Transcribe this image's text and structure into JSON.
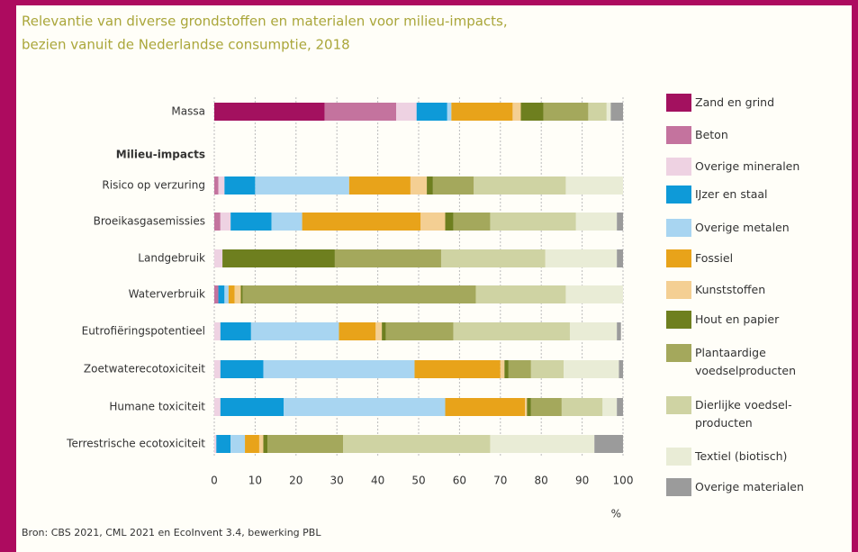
{
  "chart_data": {
    "type": "stacked_bar_horizontal",
    "title": "Relevantie van diverse grondstoffen en materialen voor milieu-impacts,",
    "subtitle": "bezien vanuit de Nederlandse consumptie, 2018",
    "group_label": "Milieu-impacts",
    "categories": [
      "Massa",
      "Risico op verzuring",
      "Broeikasgasemissies",
      "Landgebruik",
      "Waterverbruik",
      "Eutrofiëringspotentieel",
      "Zoetwaterecotoxiciteit",
      "Humane toxiciteit",
      "Terrestrische ecotoxiciteit"
    ],
    "series": [
      {
        "name": "Zand en grind",
        "color": "#a3115f",
        "values": [
          27,
          0,
          0,
          0,
          0,
          0,
          0,
          0,
          0
        ]
      },
      {
        "name": "Beton",
        "color": "#c4739e",
        "values": [
          17.5,
          1,
          1.5,
          0,
          1,
          0,
          0,
          0,
          0
        ]
      },
      {
        "name": "Overige mineralen",
        "color": "#eed2e2",
        "values": [
          5,
          1.5,
          2.5,
          2,
          0,
          1.5,
          1.5,
          1.5,
          0.5
        ]
      },
      {
        "name": "IJzer en staal",
        "color": "#0e9ad8",
        "values": [
          7.5,
          7.5,
          10,
          0,
          1.5,
          7.5,
          10.5,
          15.5,
          3.5
        ]
      },
      {
        "name": "Overige metalen",
        "color": "#a8d5f1",
        "values": [
          1,
          23,
          7.5,
          0,
          1,
          21.5,
          37,
          39.5,
          3.5
        ]
      },
      {
        "name": "Fossiel",
        "color": "#e8a31a",
        "values": [
          15,
          15,
          29,
          0,
          1.5,
          9,
          21,
          19.5,
          3.5
        ]
      },
      {
        "name": "Kunststoffen",
        "color": "#f4cf93",
        "values": [
          2,
          4,
          6,
          0,
          1.5,
          1.5,
          1,
          0.5,
          1
        ]
      },
      {
        "name": "Hout en papier",
        "color": "#6e7f1f",
        "values": [
          5.5,
          1.5,
          2,
          27.5,
          0.5,
          1,
          1,
          1,
          1
        ]
      },
      {
        "name": "Plantaardige voedselproducten",
        "color": "#a4a85c",
        "values": [
          11,
          10,
          9,
          26,
          57,
          16.5,
          5.5,
          7.5,
          18.5
        ]
      },
      {
        "name": "Dierlijke voedsel-producten",
        "color": "#cfd3a3",
        "values": [
          4.5,
          22.5,
          21,
          25.5,
          22,
          28.5,
          8,
          10,
          36
        ]
      },
      {
        "name": "Textiel (biotisch)",
        "color": "#e9ecd6",
        "values": [
          1,
          14,
          10,
          17.5,
          14,
          11.5,
          13.5,
          3.5,
          25.5
        ]
      },
      {
        "name": "Overige materialen",
        "color": "#9b9b9b",
        "values": [
          3,
          0,
          1.5,
          1.5,
          0,
          1,
          1,
          1.5,
          7
        ]
      }
    ],
    "xlim": [
      0,
      100
    ],
    "xticks": [
      0,
      10,
      20,
      30,
      40,
      50,
      60,
      70,
      80,
      90,
      100
    ],
    "x_unit": "%",
    "grid": true,
    "source": "Bron: CBS 2021, CML 2021 en EcoInvent 3.4, bewerking PBL"
  }
}
